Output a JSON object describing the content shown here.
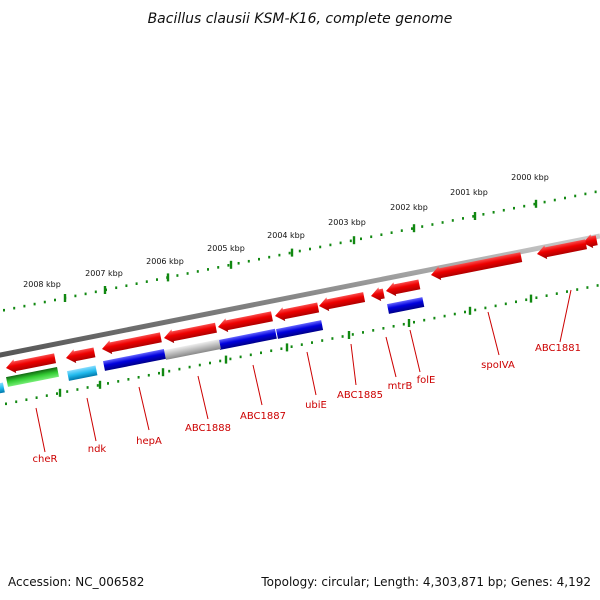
{
  "title": "Bacillus clausii KSM-K16, complete genome",
  "accession": "Accession: NC_006582",
  "topology": "Topology: circular; Length: 4,303,871 bp; Genes: 4,192",
  "colors": {
    "forward_gene": "#ee0000",
    "reverse_gene": "#0000dd",
    "gray_gene": "#bbbbbb",
    "green_gene": "#33cc33",
    "cyan_gene": "#22bbee",
    "tick": "#118811",
    "backbone": "#888888",
    "label": "#cc0000"
  },
  "kbp_labels": [
    "2000 kbp",
    "2001 kbp",
    "2002 kbp",
    "2003 kbp",
    "2004 kbp",
    "2005 kbp",
    "2006 kbp",
    "2007 kbp",
    "2008 kbp"
  ],
  "gene_labels": [
    "ABC1881",
    "spoIVA",
    "folE",
    "mtrB",
    "ABC1885",
    "ubiE",
    "ABC1887",
    "ABC1888",
    "hepA",
    "ndk",
    "cheR"
  ]
}
